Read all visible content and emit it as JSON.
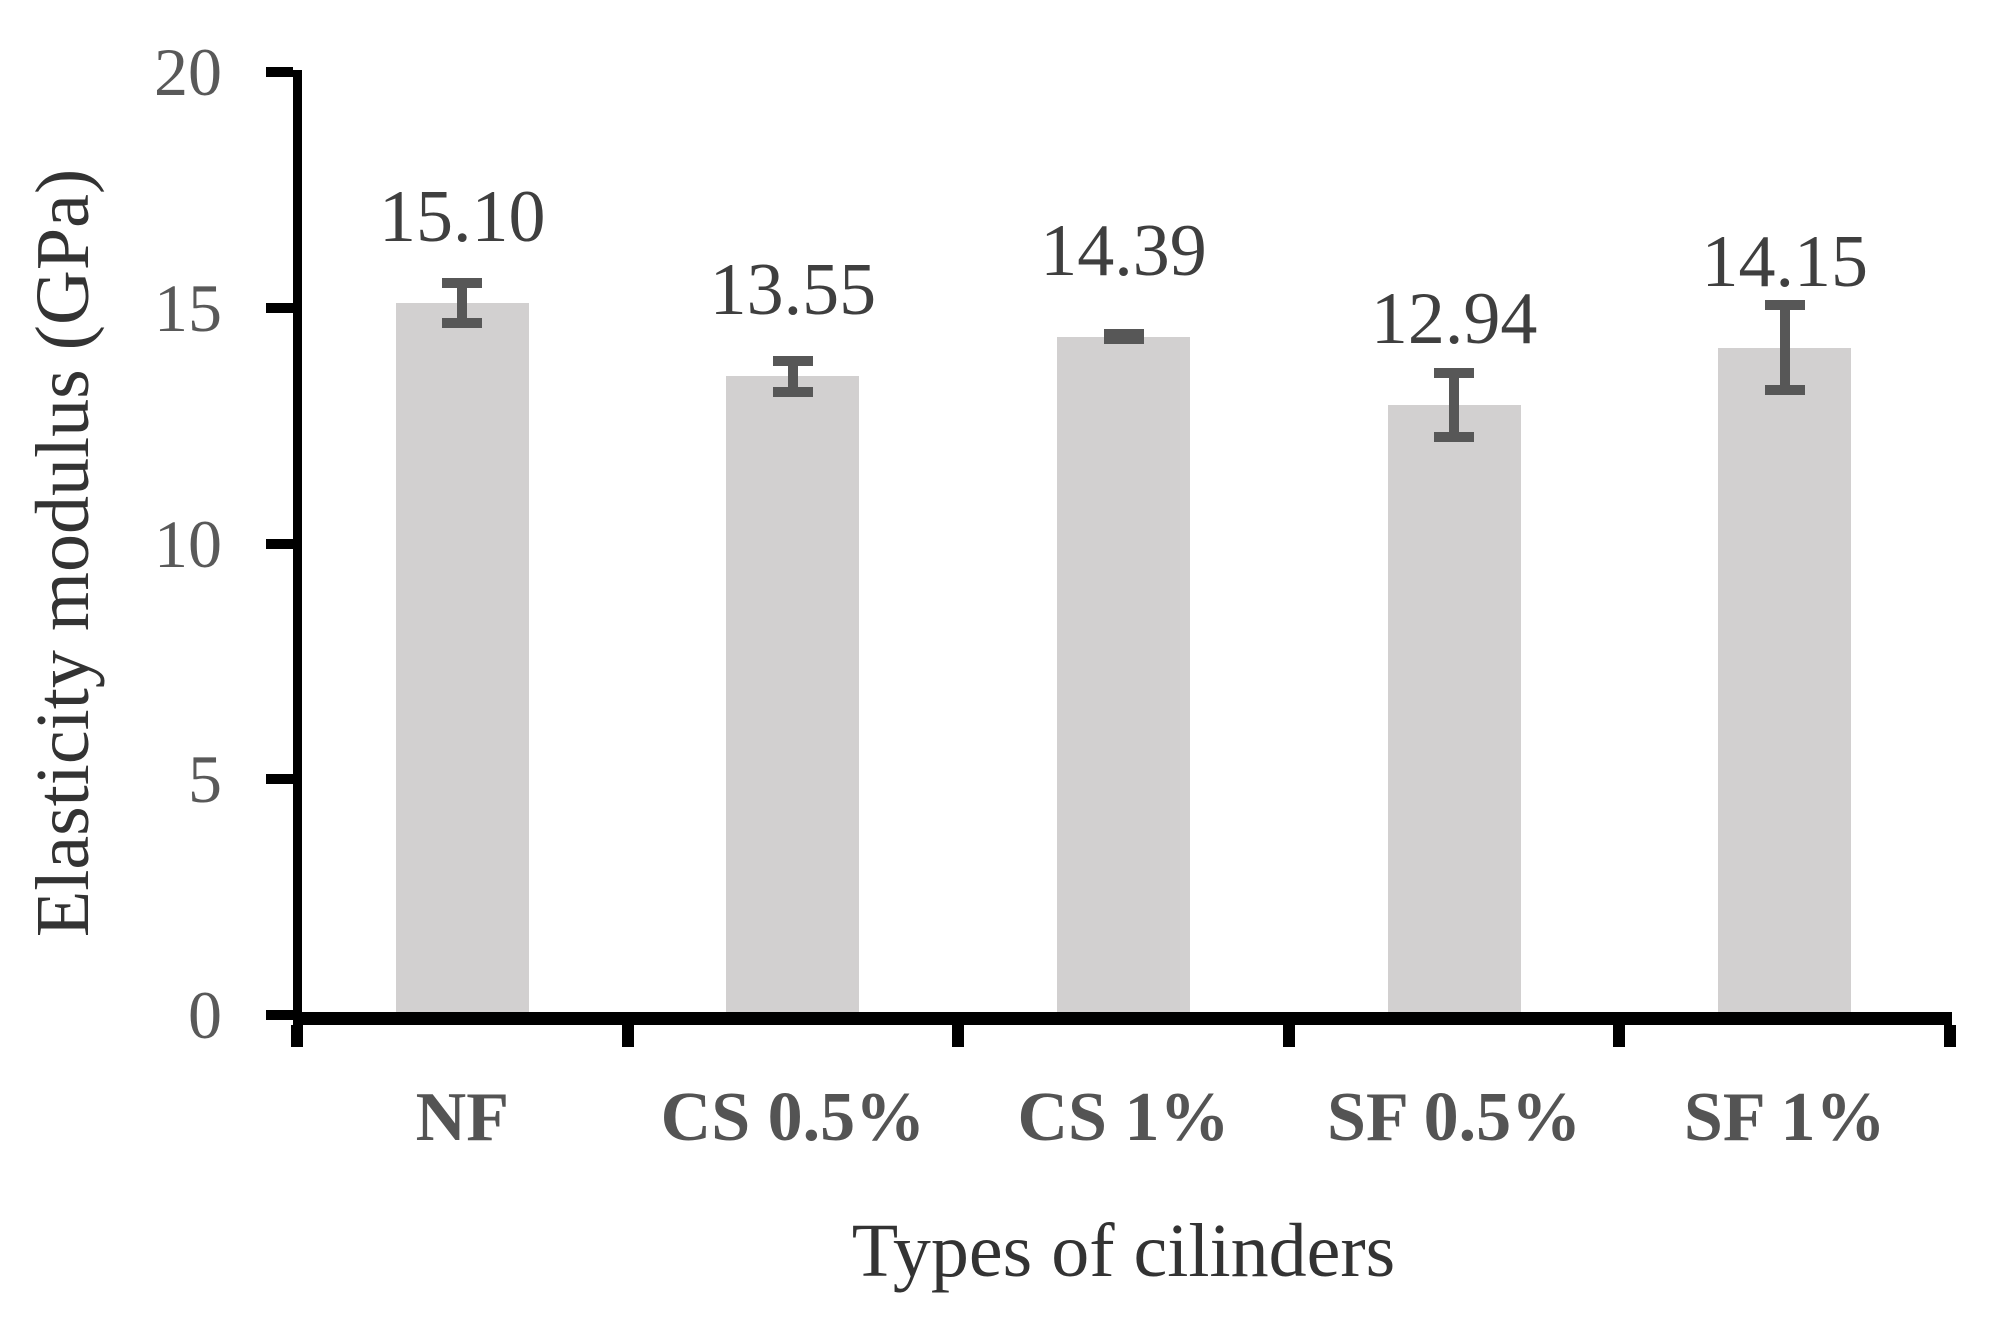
{
  "chart_data": {
    "type": "bar",
    "title": "",
    "xlabel": "Types of cilinders",
    "ylabel": "Elasticity modulus (GPa)",
    "categories": [
      "NF",
      "CS 0.5%",
      "CS 1%",
      "SF 0.5%",
      "SF 1%"
    ],
    "values": [
      15.1,
      13.55,
      14.39,
      12.94,
      14.15
    ],
    "data_labels": [
      "15.10",
      "13.55",
      "14.39",
      "12.94",
      "14.15"
    ],
    "error_bars": [
      0.43,
      0.33,
      0.05,
      0.68,
      0.9
    ],
    "ylim": [
      0,
      20
    ],
    "yticks": [
      0,
      5,
      10,
      15,
      20
    ],
    "ytick_labels": [
      "0",
      "5",
      "10",
      "15",
      "20"
    ],
    "grid": false,
    "legend": "none",
    "colors": {
      "bar_fill": "#d2d0d0",
      "error_bar": "#575757",
      "axis_line": "#000000",
      "tick_label": "#595959",
      "category_label": "#545454",
      "data_label": "#3f3f3f",
      "axis_title": "#333333",
      "background": "#ffffff"
    }
  }
}
